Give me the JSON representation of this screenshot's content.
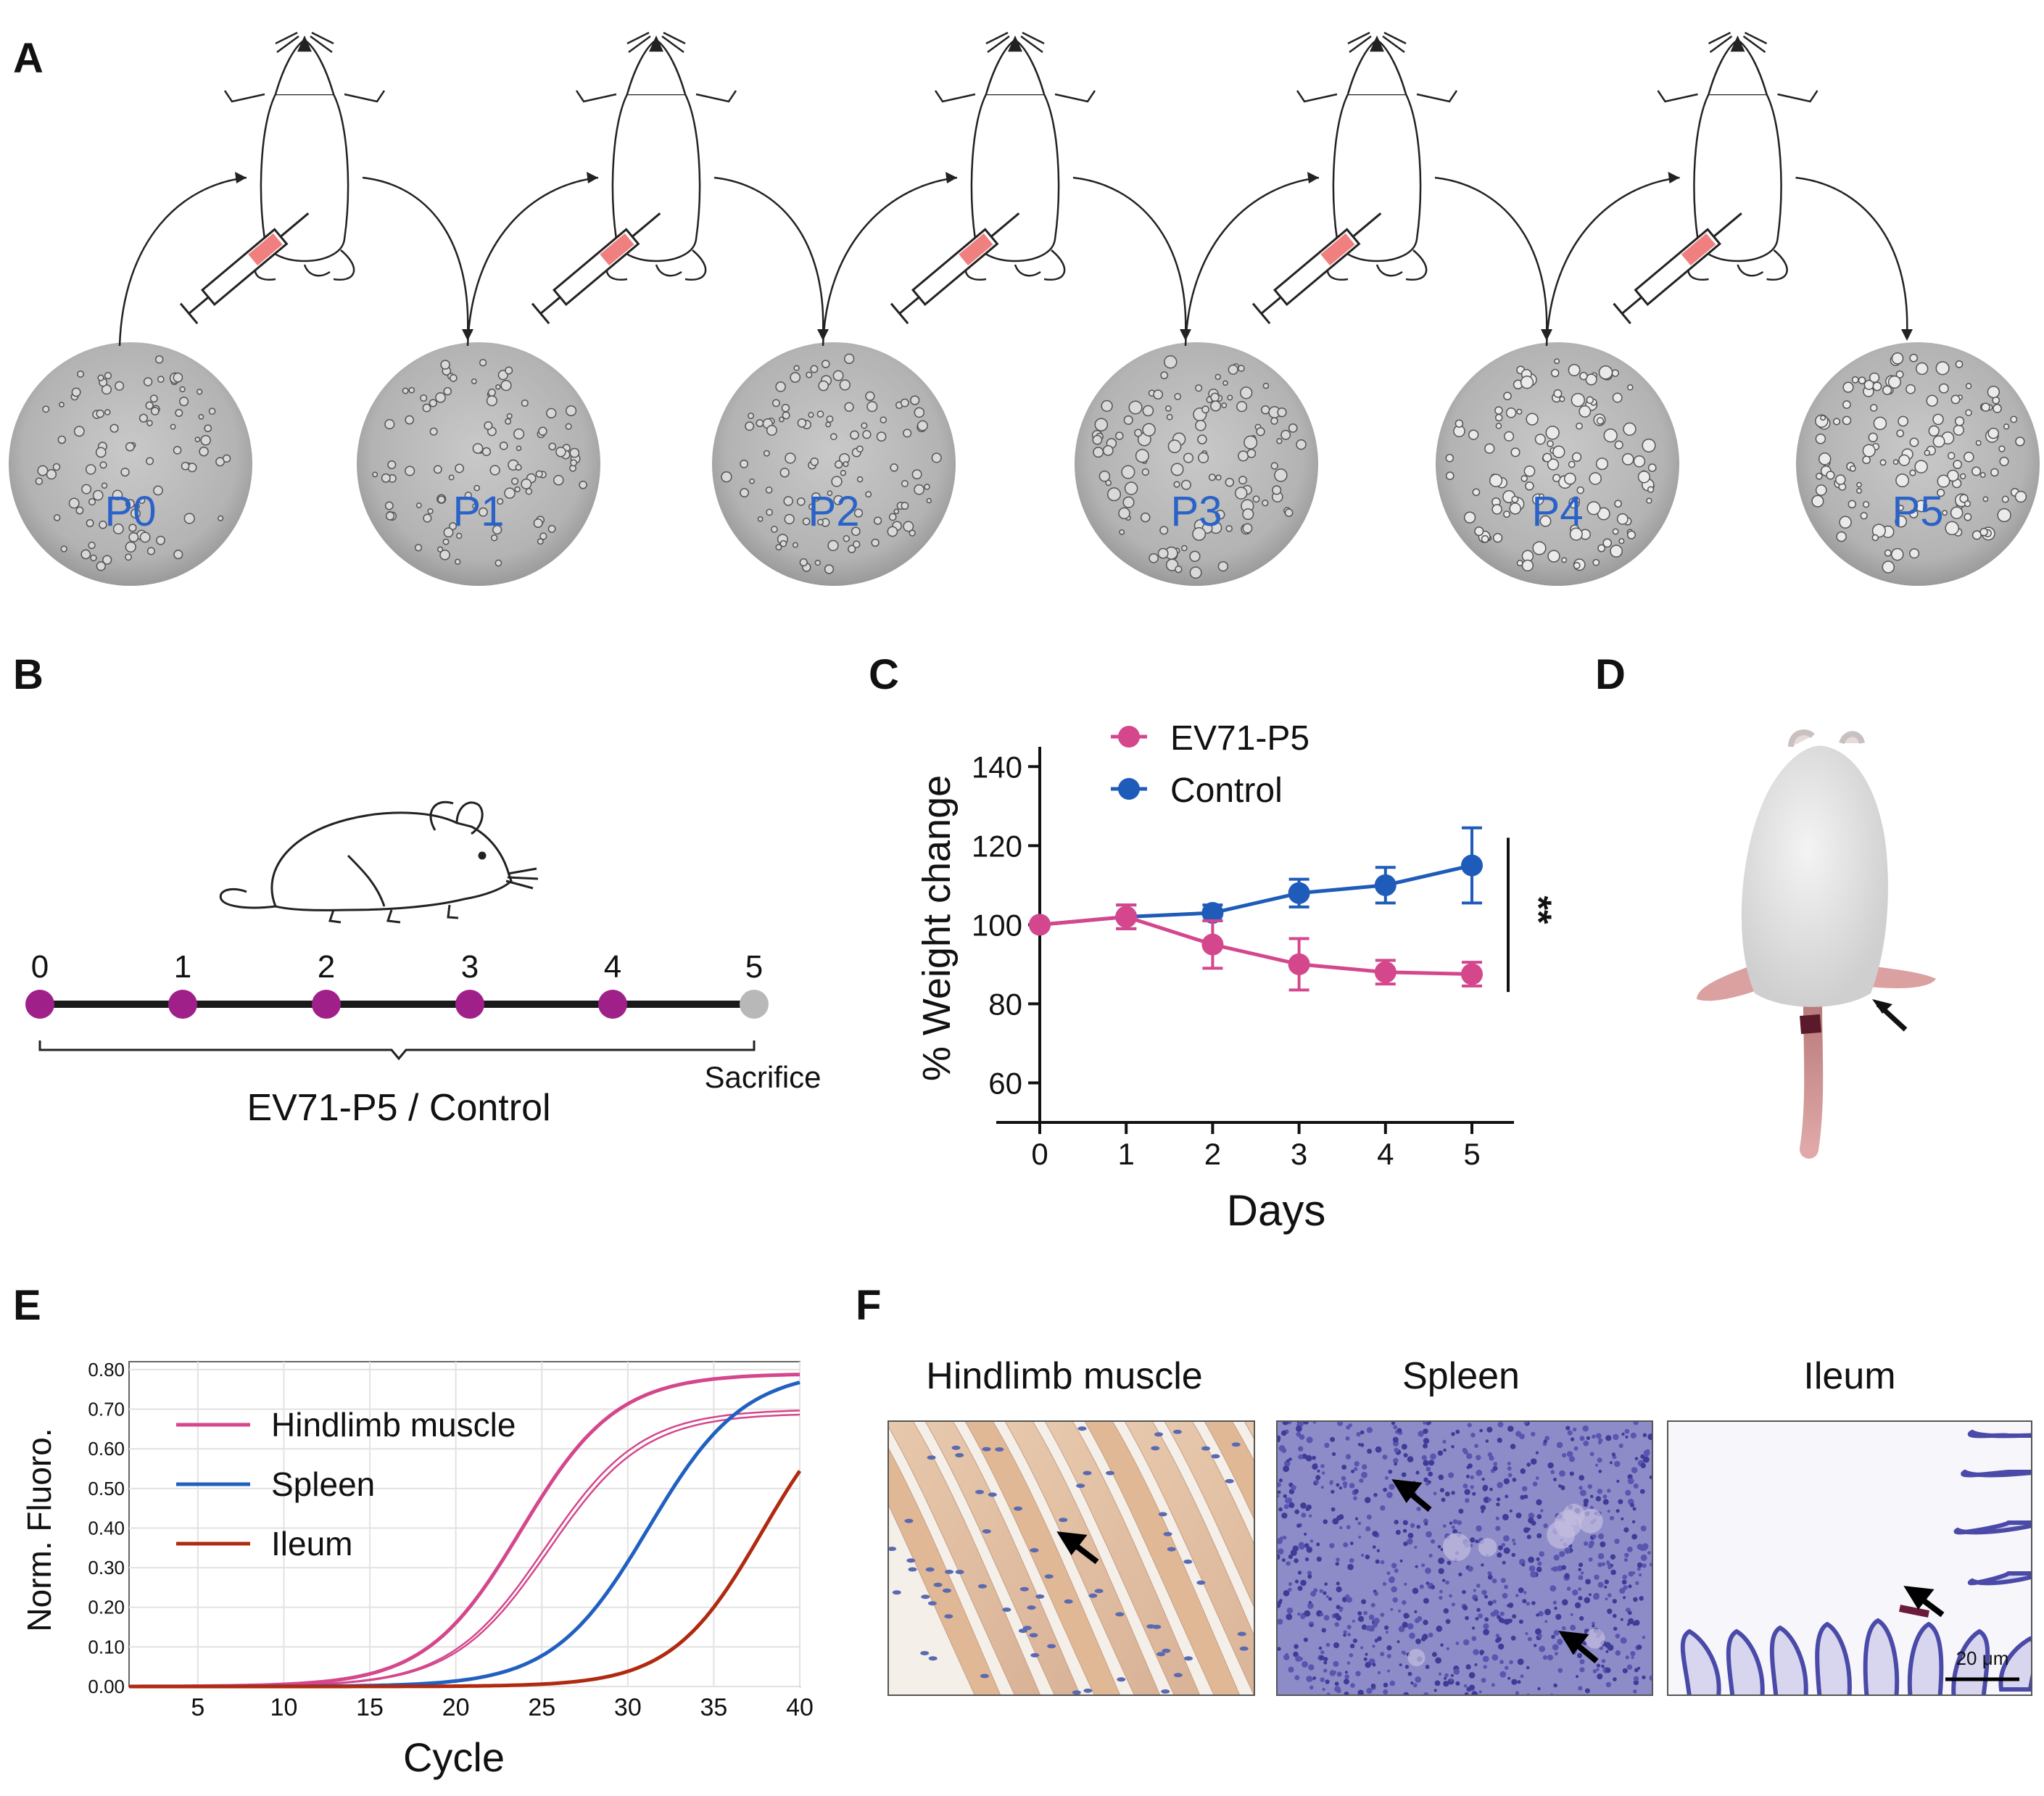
{
  "panel_labels": [
    "A",
    "B",
    "C",
    "D",
    "E",
    "F"
  ],
  "colors": {
    "ev71": "#d4478c",
    "control": "#1f5bb8",
    "spleen": "#2060c0",
    "ileum": "#b02a10",
    "timeline_dot": "#a0208a",
    "sacrifice_dot": "#b8b8b8",
    "passage_label": "#2a62c8",
    "syringe": "#f08080"
  },
  "panel_a": {
    "passages": [
      "P0",
      "P1",
      "P2",
      "P3",
      "P4",
      "P5"
    ]
  },
  "panel_b": {
    "days": [
      "0",
      "1",
      "2",
      "3",
      "4",
      "5"
    ],
    "group_label": "EV71-P5 / Control",
    "end_label": "Sacrifice"
  },
  "panel_d": {
    "description_icon": "mouse-hindlimb-paralysis-photo"
  },
  "panel_f": {
    "titles": [
      "Hindlimb muscle",
      "Spleen",
      "Ileum"
    ],
    "scale_bar": "20 μm"
  },
  "chart_data": [
    {
      "id": "C",
      "type": "line",
      "title": "",
      "xlabel": "Days",
      "ylabel": "% Weight change",
      "x": [
        0,
        1,
        2,
        3,
        4,
        5
      ],
      "xticks": [
        "0",
        "1",
        "2",
        "3",
        "4",
        "5"
      ],
      "ylim": [
        50,
        145
      ],
      "yticks": [
        60,
        80,
        100,
        120,
        140
      ],
      "ytick_labels": [
        "60",
        "80",
        "100",
        "120",
        "140"
      ],
      "series": [
        {
          "name": "EV71-P5",
          "values": [
            100,
            102,
            95,
            90,
            88,
            87.5
          ],
          "errors": [
            0,
            3,
            6,
            6.5,
            3,
            3
          ]
        },
        {
          "name": "Control",
          "values": [
            100,
            102,
            103,
            108,
            110,
            115
          ],
          "errors": [
            0,
            3,
            2,
            3.5,
            4.5,
            9.5
          ]
        }
      ],
      "significance": "**",
      "legend": "top-left"
    },
    {
      "id": "E",
      "type": "line",
      "title": "",
      "xlabel": "Cycle",
      "ylabel": "Norm. Fluoro.",
      "xlim": [
        1,
        40
      ],
      "ylim": [
        0,
        0.82
      ],
      "xticks": [
        5,
        10,
        15,
        20,
        25,
        30,
        35,
        40
      ],
      "xtick_labels": [
        "5",
        "10",
        "15",
        "20",
        "25",
        "30",
        "35",
        "40"
      ],
      "yticks": [
        0,
        0.1,
        0.2,
        0.3,
        0.4,
        0.5,
        0.6,
        0.7,
        0.8
      ],
      "ytick_labels": [
        "0.00",
        "0.10",
        "0.20",
        "0.30",
        "0.40",
        "0.50",
        "0.60",
        "0.70",
        "0.80"
      ],
      "grid": true,
      "legend": "top-left",
      "series": [
        {
          "name": "Hindlimb muscle",
          "max": 0.79,
          "mid": 23.8,
          "k": 0.36,
          "legend": true
        },
        {
          "name": "Hindlimb muscle replicate",
          "max": 0.7,
          "mid": 25.2,
          "k": 0.36,
          "legend": false
        },
        {
          "name": "Hindlimb muscle replicate",
          "max": 0.69,
          "mid": 25.4,
          "k": 0.36,
          "legend": false
        },
        {
          "name": "Spleen",
          "max": 0.8,
          "mid": 31.2,
          "k": 0.36,
          "legend": true
        },
        {
          "name": "Ileum",
          "max": 0.78,
          "mid": 37.8,
          "k": 0.38,
          "legend": true
        }
      ],
      "legend_entries": [
        "Hindlimb muscle",
        "Spleen",
        "Ileum"
      ]
    }
  ]
}
